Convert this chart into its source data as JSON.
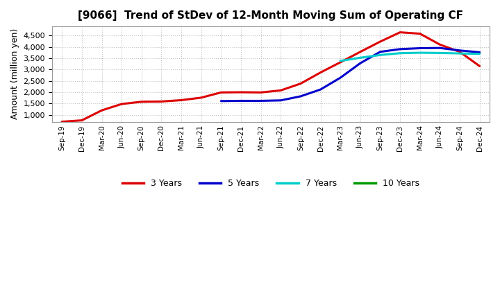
{
  "title": "[9066]  Trend of StDev of 12-Month Moving Sum of Operating CF",
  "ylabel": "Amount (million yen)",
  "background_color": "#ffffff",
  "grid_color": "#aaaaaa",
  "xlabels": [
    "Sep-19",
    "Dec-19",
    "Mar-20",
    "Jun-20",
    "Sep-20",
    "Dec-20",
    "Mar-21",
    "Jun-21",
    "Sep-21",
    "Dec-21",
    "Mar-22",
    "Jun-22",
    "Sep-22",
    "Dec-22",
    "Mar-23",
    "Jun-23",
    "Sep-23",
    "Dec-23",
    "Mar-24",
    "Jun-24",
    "Sep-24",
    "Dec-24"
  ],
  "series": {
    "3 Years": {
      "color": "#dd0000",
      "data_x": [
        0,
        1,
        2,
        3,
        4,
        5,
        6,
        7,
        8,
        9,
        10,
        11,
        12,
        13,
        14,
        15,
        16,
        17,
        18,
        19,
        20,
        21
      ],
      "data_y": [
        700,
        760,
        1200,
        1480,
        1580,
        1590,
        1650,
        1760,
        1990,
        2000,
        1990,
        2080,
        2380,
        2870,
        3320,
        3780,
        4230,
        4640,
        4580,
        4100,
        3780,
        3150
      ]
    },
    "5 Years": {
      "color": "#0000cc",
      "data_x": [
        8,
        9,
        10,
        11,
        12,
        13,
        14,
        15,
        16,
        17,
        18,
        19,
        20,
        21
      ],
      "data_y": [
        1610,
        1620,
        1620,
        1640,
        1820,
        2120,
        2640,
        3280,
        3780,
        3900,
        3940,
        3950,
        3840,
        3760
      ]
    },
    "7 Years": {
      "color": "#00cccc",
      "data_x": [
        14,
        15,
        16,
        17,
        18,
        19,
        20,
        21
      ],
      "data_y": [
        3380,
        3520,
        3640,
        3720,
        3740,
        3730,
        3710,
        3690
      ]
    },
    "10 Years": {
      "color": "#009900",
      "data_x": [],
      "data_y": []
    }
  },
  "ylim_min": 700,
  "ylim_max": 4900,
  "yticks": [
    1000,
    1500,
    2000,
    2500,
    3000,
    3500,
    4000,
    4500
  ],
  "legend_labels": [
    "3 Years",
    "5 Years",
    "7 Years",
    "10 Years"
  ],
  "legend_colors": [
    "#dd0000",
    "#0000cc",
    "#00cccc",
    "#009900"
  ],
  "title_fontsize": 11,
  "ylabel_fontsize": 9,
  "tick_fontsize": 8,
  "xtick_fontsize": 7.5,
  "linewidth": 2.2
}
